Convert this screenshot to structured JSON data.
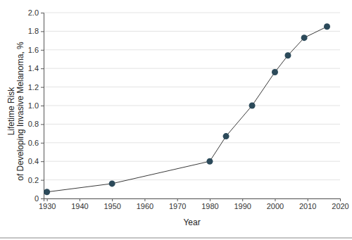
{
  "chart_data": {
    "type": "line",
    "x_label": "Year",
    "y_label": [
      "Lifetime Risk",
      "of Developing Invasive Melanoma, %"
    ],
    "x": [
      1930,
      1950,
      1980,
      1985,
      1993,
      2000,
      2004,
      2009,
      2016
    ],
    "values": [
      0.07,
      0.16,
      0.4,
      0.67,
      1.0,
      1.36,
      1.54,
      1.73,
      1.85
    ],
    "color": "#2c4a5a",
    "marker": "circle",
    "line_style": "solid",
    "xlim": [
      1929,
      2020
    ],
    "xticks": [
      1930,
      1940,
      1950,
      1960,
      1970,
      1980,
      1990,
      2000,
      2010,
      2020
    ],
    "ylim": [
      0,
      2.0
    ],
    "yticks": [
      0,
      0.2,
      0.4,
      0.6,
      0.8,
      {
        "value": 1.0,
        "label": "1.0"
      },
      1.2,
      1.4,
      1.6,
      1.8,
      {
        "value": 2.0,
        "label": "2.0"
      }
    ],
    "grid": true
  }
}
